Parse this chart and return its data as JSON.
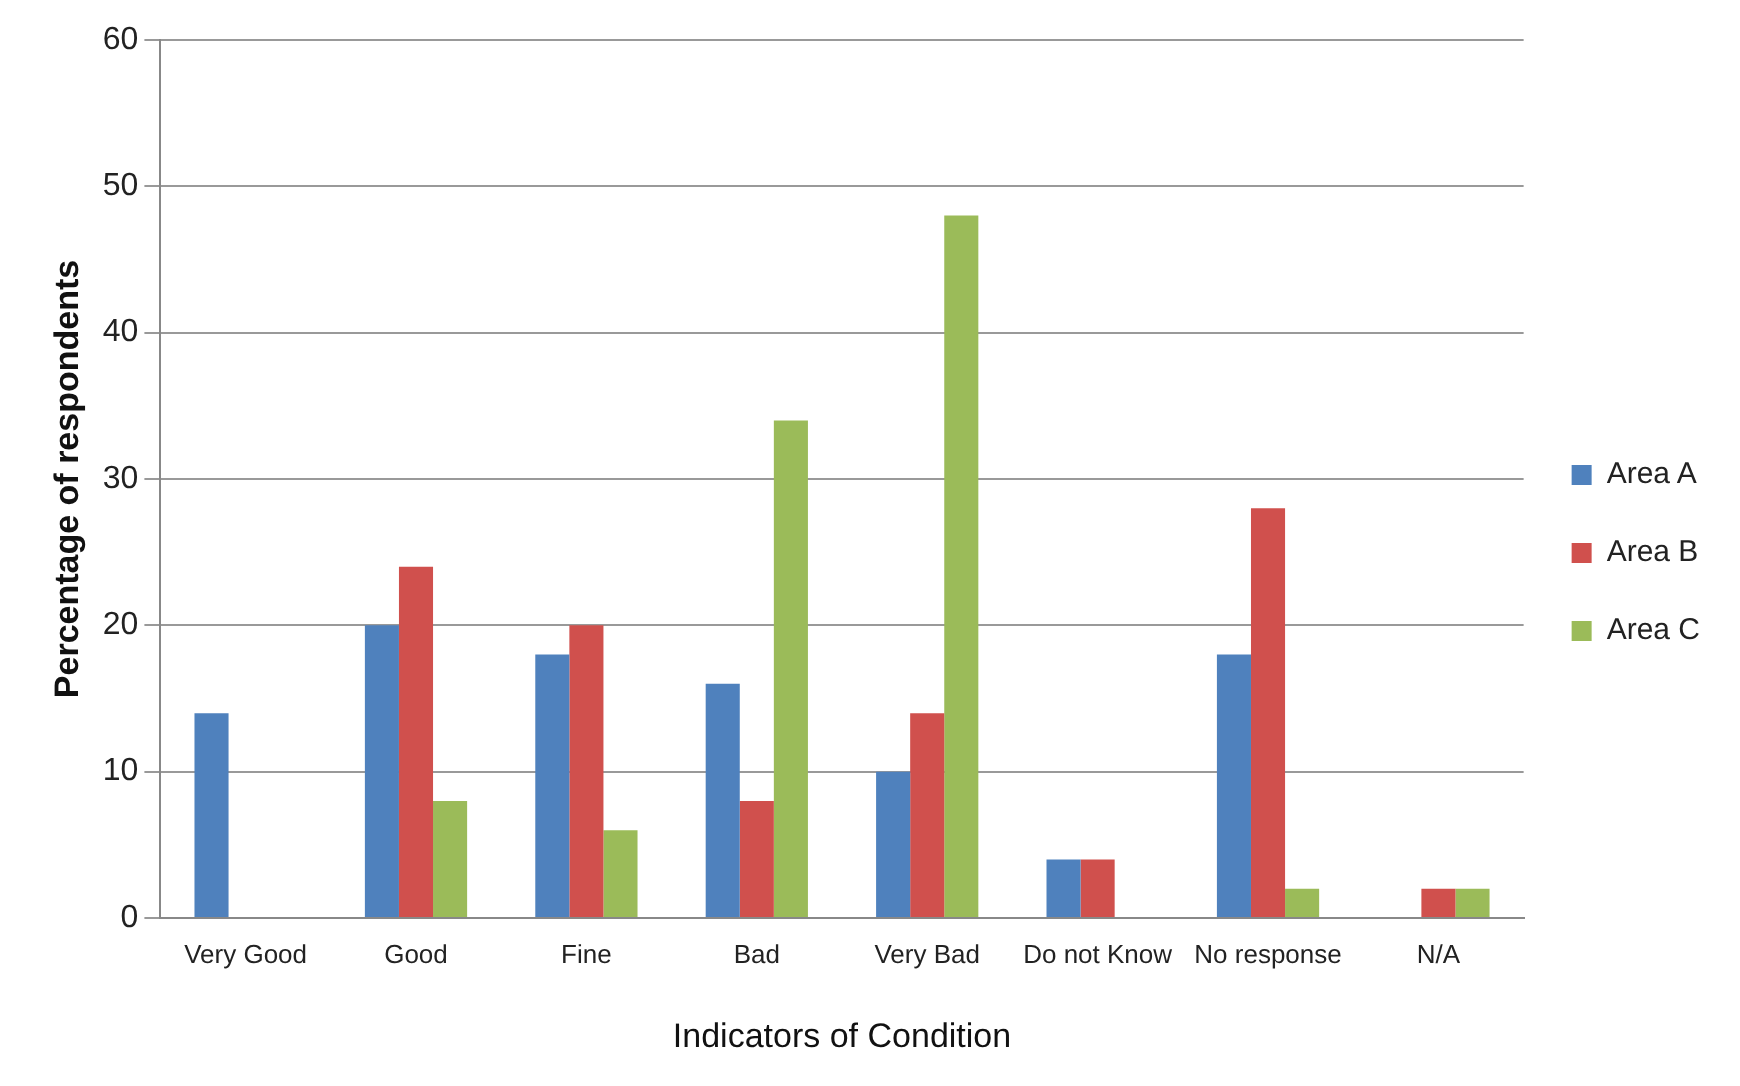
{
  "chart_data": {
    "type": "bar",
    "xlabel": "Indicators of Condition",
    "ylabel": "Percentage of respondents",
    "categories": [
      "Very Good",
      "Good",
      "Fine",
      "Bad",
      "Very Bad",
      "Do not Know",
      "No response",
      "N/A"
    ],
    "series": [
      {
        "name": "Area A",
        "color": "#4f81bd",
        "values": [
          14,
          20,
          18,
          16,
          10,
          4,
          18,
          0
        ]
      },
      {
        "name": "Area B",
        "color": "#d0504d",
        "values": [
          0,
          24,
          20,
          8,
          14,
          4,
          28,
          2
        ]
      },
      {
        "name": "Area C",
        "color": "#9bbb59",
        "values": [
          0,
          8,
          6,
          34,
          48,
          0,
          2,
          2
        ]
      }
    ],
    "ylim": [
      0,
      60
    ],
    "yticks": [
      0,
      10,
      20,
      30,
      40,
      50,
      60
    ],
    "grid": "y",
    "legend": "right"
  }
}
